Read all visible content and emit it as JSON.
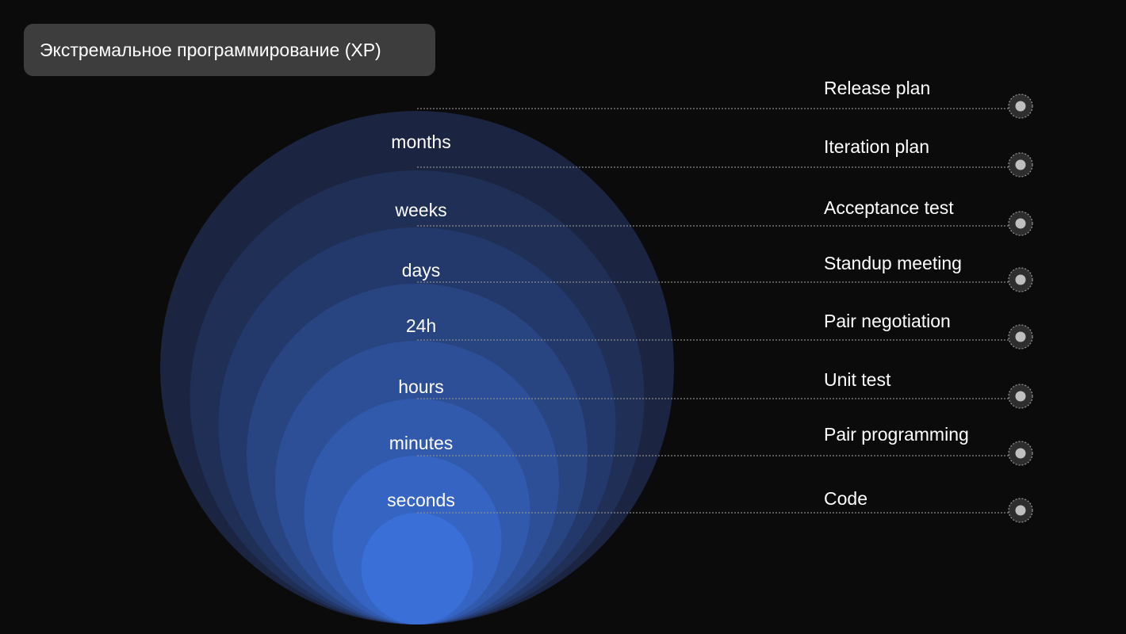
{
  "title": "Экстремальное программирование (XP)",
  "colors": {
    "background": "#0b0b0b",
    "badge": "#3d3d3d",
    "ring_outer": "#1b2440",
    "ring_inner": "#3a6fd8",
    "connector": "#8a8a8a",
    "marker_fill": "#bfbfbf"
  },
  "rings": [
    {
      "label": "months"
    },
    {
      "label": "weeks"
    },
    {
      "label": "days"
    },
    {
      "label": "24h"
    },
    {
      "label": "hours"
    },
    {
      "label": "minutes"
    },
    {
      "label": "seconds"
    }
  ],
  "steps": [
    {
      "label": "Release plan"
    },
    {
      "label": "Iteration plan"
    },
    {
      "label": "Acceptance test"
    },
    {
      "label": "Standup meeting"
    },
    {
      "label": "Pair negotiation"
    },
    {
      "label": "Unit test"
    },
    {
      "label": "Pair programming"
    },
    {
      "label": "Code"
    }
  ]
}
